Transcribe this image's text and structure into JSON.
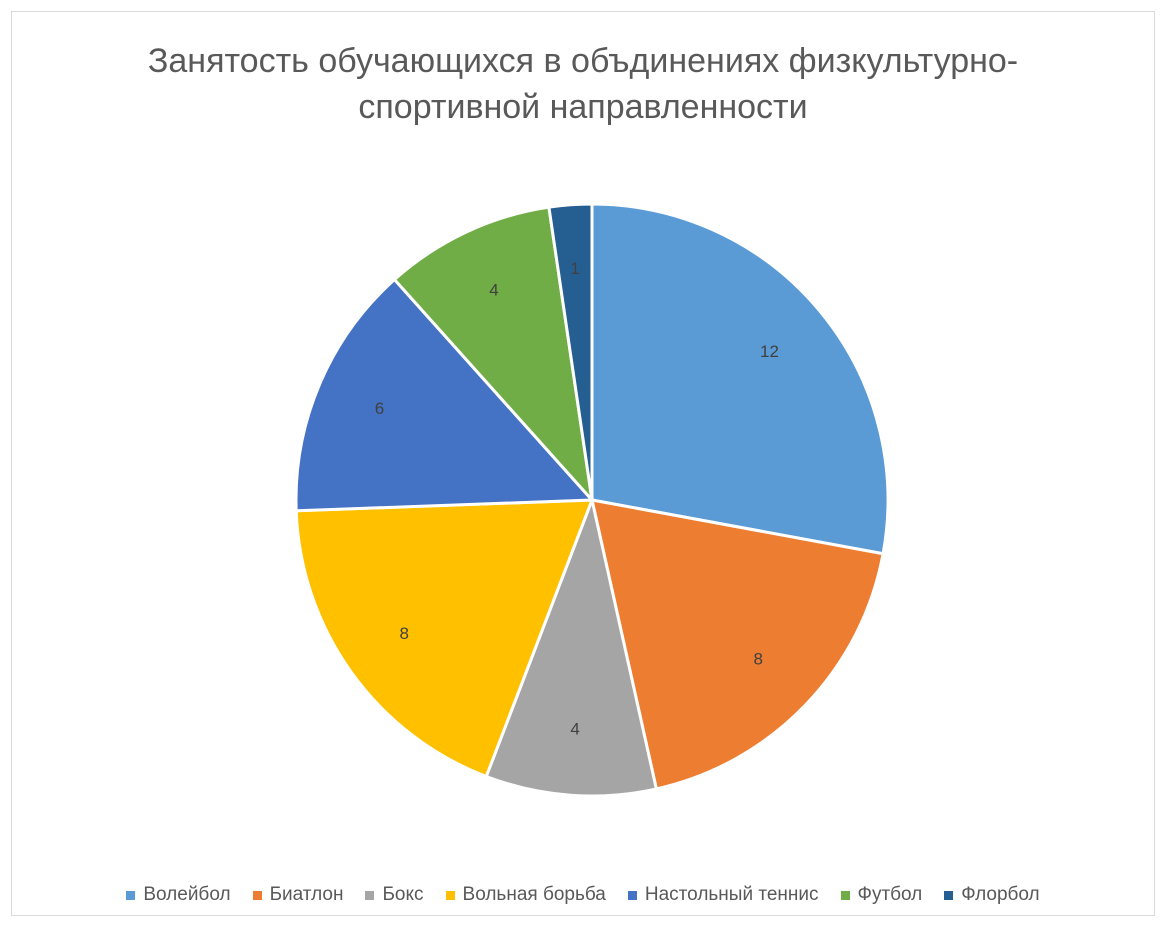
{
  "chart_data": {
    "type": "pie",
    "title": "Занятость обучающихся в объдинениях физкультурно-\nспортивной направленности",
    "categories": [
      "Волейбол",
      "Биатлон",
      "Бокс",
      "Вольная борьба",
      "Настольный теннис",
      "Футбол",
      "Флорбол"
    ],
    "values": [
      12,
      8,
      4,
      8,
      6,
      4,
      1
    ],
    "colors": [
      "#5b9bd5",
      "#ed7d31",
      "#a5a5a5",
      "#ffc000",
      "#4472c4",
      "#70ad47",
      "#255e91"
    ],
    "data_labels": [
      "12",
      "8",
      "4",
      "8",
      "6",
      "4",
      "1"
    ],
    "start_angle_deg": 0,
    "direction": "clockwise",
    "legend_position": "bottom"
  }
}
